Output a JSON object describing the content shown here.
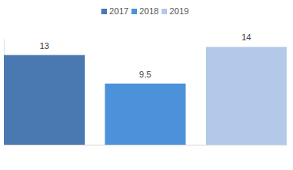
{
  "chart_data": {
    "type": "bar",
    "categories": [
      null
    ],
    "series": [
      {
        "name": "2017",
        "color": "#4a78b0",
        "values": [
          13
        ]
      },
      {
        "name": "2018",
        "color": "#4b92db",
        "values": [
          9.5
        ]
      },
      {
        "name": "2019",
        "color": "#b3c9ea",
        "values": [
          14
        ]
      }
    ],
    "ylim": [
      2,
      15
    ],
    "tick_labels": false,
    "data_labels": true,
    "legend": "top"
  }
}
